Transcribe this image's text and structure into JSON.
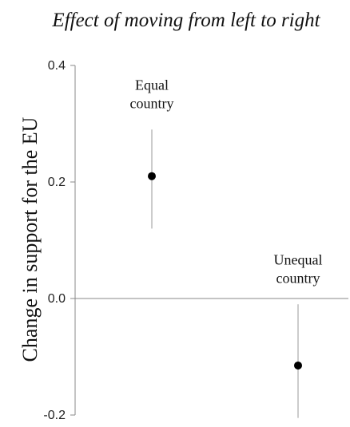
{
  "chart_data": {
    "type": "scatter",
    "title": "Effect of moving from left to right",
    "ylabel": "Change in support for the EU",
    "xlabel": "",
    "ylim": [
      -0.2,
      0.4
    ],
    "yticks": [
      0.4,
      0.2,
      0.0,
      -0.2
    ],
    "ytick_labels": [
      "0.4",
      "0.2",
      "0.0",
      "-0.2"
    ],
    "grid": false,
    "zero_line": true,
    "colors": {
      "point": "#000000",
      "error_bar": "#b0b0b0",
      "axis": "#888888"
    },
    "points": [
      {
        "label": [
          "Equal",
          "country"
        ],
        "estimate": 0.21,
        "ci_low": 0.12,
        "ci_high": 0.29
      },
      {
        "label": [
          "Unequal",
          "country"
        ],
        "estimate": -0.115,
        "ci_low": -0.205,
        "ci_high": -0.01
      }
    ]
  }
}
